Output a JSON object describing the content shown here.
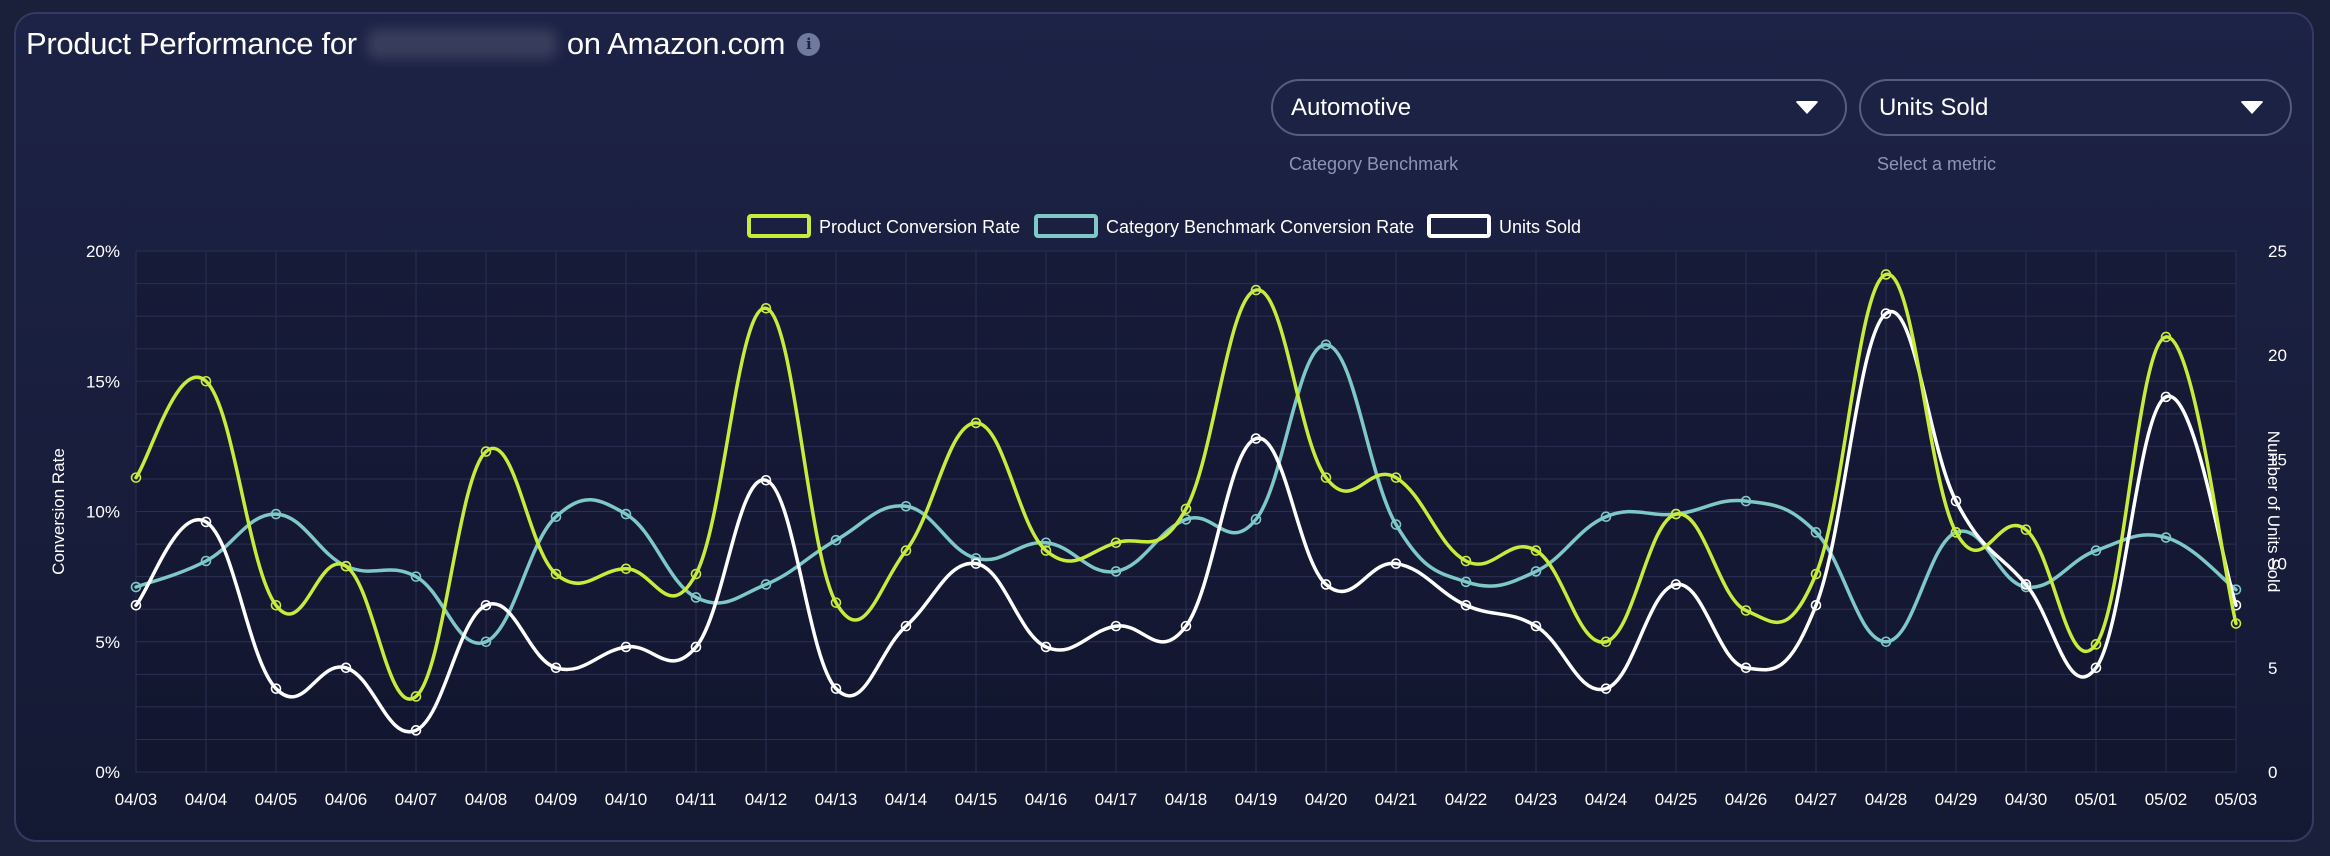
{
  "header": {
    "title_prefix": "Product Performance for",
    "title_suffix": "on Amazon.com",
    "info_icon": "info-icon"
  },
  "controls": {
    "category": {
      "value": "Automotive",
      "caption": "Category Benchmark"
    },
    "metric": {
      "value": "Units Sold",
      "caption": "Select a metric"
    }
  },
  "colors": {
    "product": "#c8ec3c",
    "benchmark": "#7ec8c8",
    "units": "#ffffff",
    "grid": "#2a3052"
  },
  "chart_data": {
    "type": "line",
    "legend_position": "top-center",
    "grid": true,
    "xlabel": "",
    "ylabel_left": "Conversion Rate",
    "ylabel_right": "Number of Units Sold",
    "ylim_left": [
      0,
      20
    ],
    "ylim_right": [
      0,
      25
    ],
    "y_ticks_left": [
      "0%",
      "5%",
      "10%",
      "15%",
      "20%"
    ],
    "y_ticks_right": [
      "0",
      "5",
      "10",
      "15",
      "20",
      "25"
    ],
    "x": [
      "04/03",
      "04/04",
      "04/05",
      "04/06",
      "04/07",
      "04/08",
      "04/09",
      "04/10",
      "04/11",
      "04/12",
      "04/13",
      "04/14",
      "04/15",
      "04/16",
      "04/17",
      "04/18",
      "04/19",
      "04/20",
      "04/21",
      "04/22",
      "04/23",
      "04/24",
      "04/25",
      "04/26",
      "04/27",
      "04/28",
      "04/29",
      "04/30",
      "05/01",
      "05/02",
      "05/03"
    ],
    "series": [
      {
        "name": "Product Conversion Rate",
        "axis": "left",
        "values": [
          11.3,
          15.0,
          6.4,
          7.9,
          2.9,
          12.3,
          7.6,
          7.8,
          7.6,
          17.8,
          6.5,
          8.5,
          13.4,
          8.5,
          8.8,
          10.1,
          18.5,
          11.3,
          11.3,
          8.1,
          8.5,
          5.0,
          9.9,
          6.2,
          7.6,
          19.1,
          9.2,
          9.3,
          4.9,
          16.7,
          5.7
        ]
      },
      {
        "name": "Category Benchmark Conversion Rate",
        "axis": "left",
        "values": [
          7.1,
          8.1,
          9.9,
          7.9,
          7.5,
          5.0,
          9.8,
          9.9,
          6.7,
          7.2,
          8.9,
          10.2,
          8.2,
          8.8,
          7.7,
          9.7,
          9.7,
          16.4,
          9.5,
          7.3,
          7.7,
          9.8,
          9.9,
          10.4,
          9.2,
          5.0,
          9.2,
          7.1,
          8.5,
          9.0,
          7.0
        ]
      },
      {
        "name": "Units Sold",
        "axis": "right",
        "values": [
          8,
          12,
          4,
          5,
          2,
          8,
          5,
          6,
          6,
          14,
          4,
          7,
          10,
          6,
          7,
          7,
          16,
          9,
          10,
          8,
          7,
          4,
          9,
          5,
          8,
          22,
          13,
          9,
          5,
          18,
          8
        ]
      }
    ]
  }
}
